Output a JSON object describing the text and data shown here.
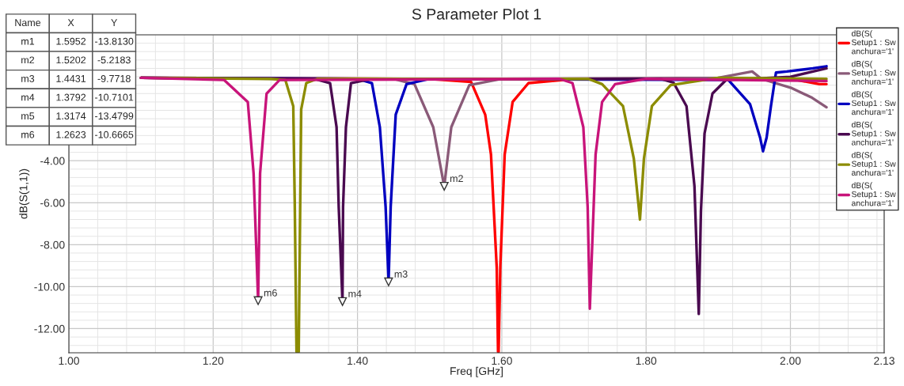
{
  "chart_data": {
    "type": "line",
    "title": "S Parameter Plot 1",
    "xlabel": "Freq [GHz]",
    "ylabel": "dB(S(1,1))",
    "xlim": [
      1.0,
      2.13
    ],
    "ylim": [
      -13.15,
      2.0
    ],
    "xticks": [
      {
        "value": 1.0,
        "label": "1.00"
      },
      {
        "value": 1.2,
        "label": "1.20"
      },
      {
        "value": 1.4,
        "label": "1.40"
      },
      {
        "value": 1.6,
        "label": "1.60"
      },
      {
        "value": 1.8,
        "label": "1.80"
      },
      {
        "value": 2.0,
        "label": "2.00"
      },
      {
        "value": 2.13,
        "label": "2.13"
      }
    ],
    "yticks": [
      {
        "value": -12,
        "label": "-12.00"
      },
      {
        "value": -10,
        "label": "-10.00"
      },
      {
        "value": -8,
        "label": "-8.00"
      },
      {
        "value": -6,
        "label": "-6.00"
      },
      {
        "value": -4,
        "label": "-4.00"
      }
    ],
    "grid": true,
    "legend": "top right",
    "marker": "none",
    "line_style": "solid",
    "series": [
      {
        "name": "dB(S(\nSetup1 : Sw\nanchura='1'",
        "color": "#ff0000",
        "x": [
          1.1,
          1.5,
          1.5575,
          1.577,
          1.585,
          1.593,
          1.5948,
          1.5956,
          1.598,
          1.604,
          1.615,
          1.637,
          1.7,
          2.0,
          2.04,
          2.05
        ],
        "values": [
          -0.05,
          -0.1,
          -0.25,
          -1.8,
          -3.7,
          -9.1,
          -13.1,
          -13.1,
          -9.0,
          -3.7,
          -1.2,
          -0.3,
          -0.1,
          -0.1,
          -0.35,
          -0.35
        ]
      },
      {
        "name": "dB(S(\nSetup1 : Sw\nanchura='1'",
        "color": "#8a5a78",
        "x": [
          1.1,
          1.45,
          1.479,
          1.505,
          1.5202,
          1.53,
          1.555,
          1.6,
          1.9,
          1.947,
          1.96,
          2.002,
          2.03,
          2.05
        ],
        "values": [
          -0.05,
          -0.1,
          -0.35,
          -2.4,
          -5.22,
          -2.4,
          -0.4,
          -0.1,
          -0.05,
          0.25,
          -0.1,
          -0.54,
          -1.0,
          -1.45
        ]
      },
      {
        "name": "dB(S(\nSetup1 : Sw\nanchura='1'",
        "color": "#0000c0",
        "x": [
          1.1,
          1.4,
          1.42,
          1.431,
          1.439,
          1.4431,
          1.446,
          1.453,
          1.468,
          1.5,
          1.914,
          1.944,
          1.958,
          1.962,
          1.967,
          1.973,
          1.98,
          1.995,
          2.031,
          2.05
        ],
        "values": [
          -0.05,
          -0.1,
          -0.3,
          -2.4,
          -6.2,
          -9.77,
          -6.2,
          -1.8,
          -0.35,
          -0.1,
          -0.15,
          -1.3,
          -2.9,
          -3.55,
          -2.9,
          -1.4,
          0.2,
          0.25,
          0.4,
          0.5
        ]
      },
      {
        "name": "dB(S(\nSetup1 : Sw\nanchura='1'",
        "color": "#4a0a50",
        "x": [
          1.1,
          1.34,
          1.362,
          1.371,
          1.374,
          1.3792,
          1.38,
          1.384,
          1.391,
          1.42,
          1.82,
          1.838,
          1.856,
          1.867,
          1.873,
          1.876,
          1.881,
          1.892,
          1.911,
          2.0,
          2.05
        ],
        "values": [
          -0.05,
          -0.1,
          -0.3,
          -2.4,
          -6.2,
          -10.71,
          -6.2,
          -2.4,
          -0.3,
          -0.1,
          -0.1,
          -0.28,
          -1.4,
          -5.2,
          -11.3,
          -6.4,
          -2.7,
          -0.8,
          -0.15,
          0.0,
          0.4
        ]
      },
      {
        "name": "dB(S(\nSetup1 : Sw\nanchura='1'",
        "color": "#8c8c00",
        "x": [
          1.1,
          1.28,
          1.3,
          1.311,
          1.313,
          1.3155,
          1.3185,
          1.322,
          1.329,
          1.344,
          1.72,
          1.739,
          1.768,
          1.783,
          1.7915,
          1.797,
          1.808,
          1.834,
          1.9,
          2.05
        ],
        "values": [
          -0.05,
          -0.1,
          -0.15,
          -1.4,
          -5.9,
          -13.1,
          -13.1,
          -1.55,
          -0.3,
          -0.1,
          -0.1,
          -0.35,
          -1.4,
          -3.9,
          -6.8,
          -3.9,
          -1.4,
          -0.4,
          -0.05,
          -0.1
        ]
      },
      {
        "name": "dB(S(\nSetup1 : Sw\nanchura='1'",
        "color": "#c8147a",
        "x": [
          1.1,
          1.215,
          1.248,
          1.256,
          1.2623,
          1.265,
          1.274,
          1.292,
          1.68,
          1.698,
          1.713,
          1.719,
          1.722,
          1.726,
          1.73,
          1.739,
          1.757,
          1.8,
          2.05
        ],
        "values": [
          -0.05,
          -0.15,
          -1.2,
          -4.6,
          -10.67,
          -4.6,
          -0.8,
          -0.15,
          -0.1,
          -0.3,
          -2.4,
          -6.2,
          -11.05,
          -7.4,
          -3.7,
          -1.2,
          -0.35,
          -0.1,
          -0.2
        ]
      }
    ],
    "annotations": [
      "Name",
      "X",
      "Y",
      "m1",
      "1.5952",
      "-13.8130",
      "m2",
      "1.5202",
      "-5.2183",
      "m3",
      "1.4431",
      "-9.7718",
      "m4",
      "1.3792",
      "-10.7101",
      "m5",
      "1.3174",
      "-13.4799",
      "m6",
      "1.2623",
      "-10.6665",
      {
        "text": "m2",
        "x": 1.5202,
        "y": -5.2183
      },
      {
        "text": "m3",
        "x": 1.4431,
        "y": -9.7718
      },
      {
        "text": "m4",
        "x": 1.3792,
        "y": -10.7101
      },
      {
        "text": "m6",
        "x": 1.2623,
        "y": -10.6665
      }
    ]
  }
}
